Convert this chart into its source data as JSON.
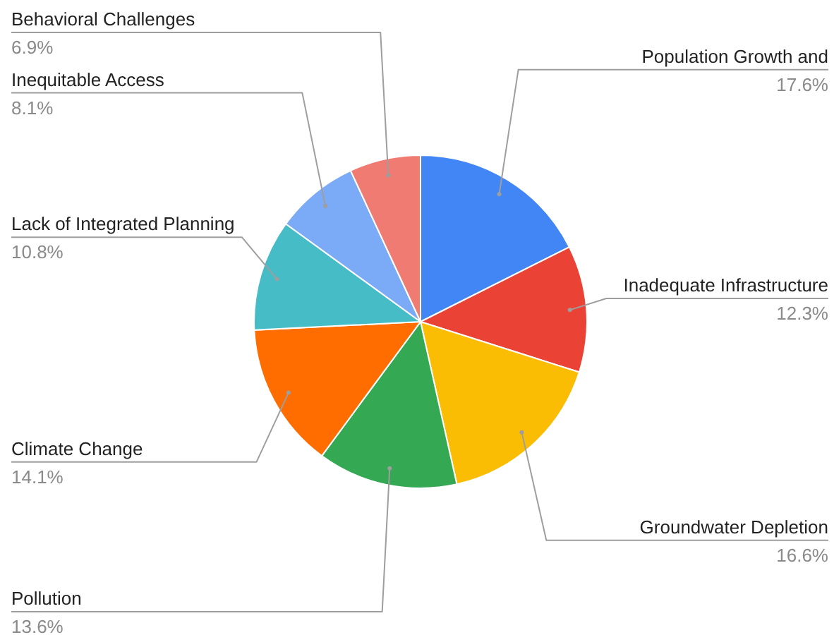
{
  "chart_data": {
    "type": "pie",
    "categories": [
      "Population Growth and",
      "Inadequate Infrastructure",
      "Groundwater Depletion",
      "Pollution",
      "Climate Change",
      "Lack of Integrated Planning",
      "Inequitable Access",
      "Behavioral Challenges"
    ],
    "values": [
      17.6,
      12.3,
      16.6,
      13.6,
      14.1,
      10.8,
      8.1,
      6.9
    ],
    "colors": [
      "#4285f4",
      "#ea4335",
      "#fbbc04",
      "#34a853",
      "#ff6d01",
      "#46bdc6",
      "#7baaf7",
      "#f07b72"
    ],
    "value_labels": [
      "17.6%",
      "12.3%",
      "16.6%",
      "13.6%",
      "14.1%",
      "10.8%",
      "8.1%",
      "6.9%"
    ]
  }
}
